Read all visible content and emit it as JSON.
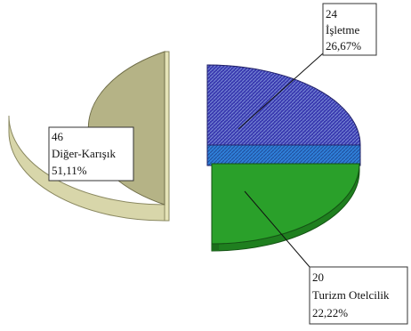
{
  "chart_data": {
    "type": "pie",
    "title": "",
    "slices": [
      {
        "name": "İşletme",
        "value": 24,
        "percent_label": "26,67%",
        "count_label": "24",
        "color": "#3a3ab0",
        "side_color": "#2c2c86"
      },
      {
        "name": "Turizm Otelcilik",
        "value": 20,
        "percent_label": "22,22%",
        "count_label": "20",
        "color": "#2aa02a",
        "side_color": "#1f7f1f"
      },
      {
        "name": "Diğer-Karışık",
        "value": 46,
        "percent_label": "51,11%",
        "count_label": "46",
        "color": "#b5b386",
        "side_color": "#d8d6aa"
      }
    ]
  }
}
